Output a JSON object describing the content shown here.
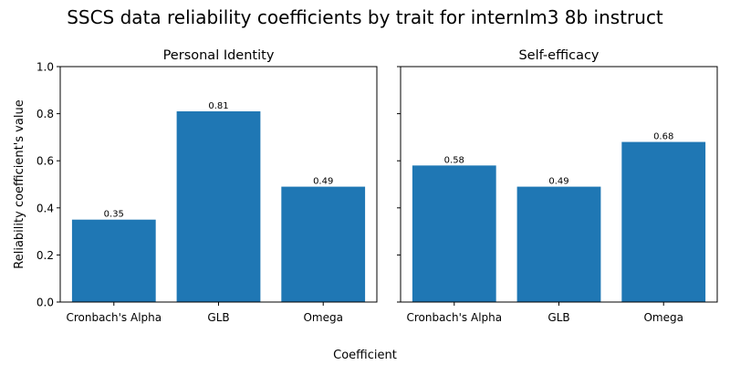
{
  "figure": {
    "title": "SSCS data reliability coefficients by trait for internlm3 8b instruct",
    "xlabel": "Coefficient",
    "ylabel": "Reliability coefficient's value"
  },
  "chart_data": [
    {
      "type": "bar",
      "title": "Personal Identity",
      "categories": [
        "Cronbach's Alpha",
        "GLB",
        "Omega"
      ],
      "values": [
        0.35,
        0.81,
        0.49
      ],
      "data_labels": [
        "0.35",
        "0.81",
        "0.49"
      ],
      "ylim": [
        0,
        1.0
      ],
      "yticks": [
        "0.0",
        "0.2",
        "0.4",
        "0.6",
        "0.8",
        "1.0"
      ],
      "color": "#1f77b4",
      "grid": false
    },
    {
      "type": "bar",
      "title": "Self-efficacy",
      "categories": [
        "Cronbach's Alpha",
        "GLB",
        "Omega"
      ],
      "values": [
        0.58,
        0.49,
        0.68
      ],
      "data_labels": [
        "0.58",
        "0.49",
        "0.68"
      ],
      "ylim": [
        0,
        1.0
      ],
      "yticks": [
        "0.0",
        "0.2",
        "0.4",
        "0.6",
        "0.8",
        "1.0"
      ],
      "color": "#1f77b4",
      "grid": false
    }
  ]
}
